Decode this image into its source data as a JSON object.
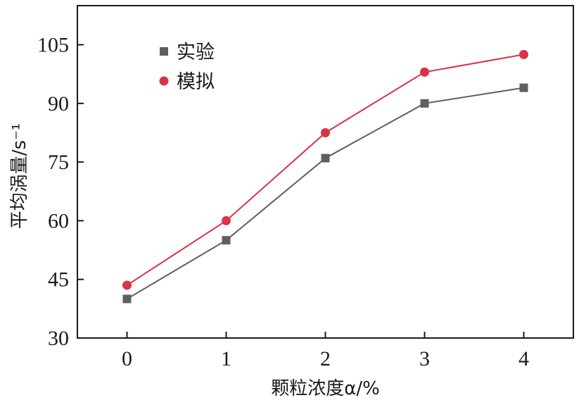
{
  "chart_data": {
    "type": "line",
    "x": [
      0,
      1,
      2,
      3,
      4
    ],
    "xticks": [
      "0",
      "1",
      "2",
      "3",
      "4"
    ],
    "yticks": [
      "30",
      "45",
      "60",
      "75",
      "90",
      "105"
    ],
    "xlim": [
      -0.5,
      4.5
    ],
    "ylim": [
      30,
      115
    ],
    "xlabel": "颗粒浓度α/%",
    "ylabel": "平均涡量/s⁻¹",
    "grid": false,
    "legend_position": "top-left",
    "series": [
      {
        "name": "实验",
        "marker": "square",
        "color": "#5f5f5f",
        "values": [
          40,
          55,
          76,
          90,
          94
        ]
      },
      {
        "name": "模拟",
        "marker": "circle",
        "color": "#d93347",
        "values": [
          43.5,
          60,
          82.5,
          98,
          102.5
        ]
      }
    ]
  }
}
